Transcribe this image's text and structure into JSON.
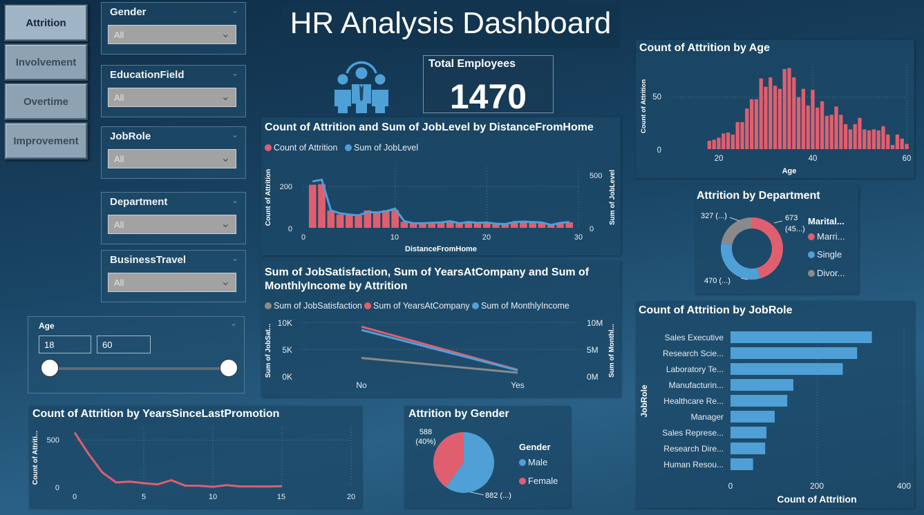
{
  "colors": {
    "red": "#e05f6f",
    "blue": "#4fa0d6",
    "gray": "#8a8a8a",
    "grid": "#5d7f99"
  },
  "nav": [
    {
      "label": "Attrition",
      "active": true
    },
    {
      "label": "Involvement"
    },
    {
      "label": "Overtime"
    },
    {
      "label": "Improvement"
    }
  ],
  "header": {
    "title": "HR Analysis Dashboard",
    "icon": "team-people-icon"
  },
  "kpi": {
    "label": "Total Employees",
    "value": "1470"
  },
  "slicers": [
    {
      "label": "Gender",
      "value": "All"
    },
    {
      "label": "EducationField",
      "value": "All"
    },
    {
      "label": "JobRole",
      "value": "All"
    },
    {
      "label": "Department",
      "value": "All"
    },
    {
      "label": "BusinessTravel",
      "value": "All"
    }
  ],
  "age_slider": {
    "label": "Age",
    "min": "18",
    "max": "60"
  },
  "chart_data": [
    {
      "id": "distance",
      "type": "bar+line",
      "title": "Count of Attrition and Sum of JobLevel by DistanceFromHome",
      "legend": [
        "Count of Attrition",
        "Sum of JobLevel"
      ],
      "xlabel": "DistanceFromHome",
      "ylabel": "Count of Attrition",
      "y2label": "Sum of JobLevel",
      "xticks": [
        "0",
        "10",
        "20",
        "30"
      ],
      "yticks": [
        "0",
        "200"
      ],
      "y2ticks": [
        "0",
        "500"
      ],
      "xlim": [
        0,
        30
      ],
      "ylim": [
        0,
        300
      ],
      "y2lim": [
        0,
        750
      ],
      "x": [
        1,
        2,
        3,
        4,
        5,
        6,
        7,
        8,
        9,
        10,
        11,
        12,
        13,
        14,
        15,
        16,
        17,
        18,
        19,
        20,
        21,
        22,
        23,
        24,
        25,
        26,
        27,
        28,
        29
      ],
      "attrition": [
        208,
        211,
        84,
        64,
        65,
        59,
        84,
        80,
        85,
        86,
        29,
        20,
        19,
        21,
        26,
        32,
        20,
        26,
        22,
        25,
        18,
        18,
        27,
        28,
        25,
        25,
        12,
        23,
        27
      ],
      "joblevel": [
        560,
        580,
        210,
        175,
        160,
        150,
        190,
        185,
        200,
        230,
        80,
        55,
        55,
        60,
        65,
        80,
        55,
        70,
        60,
        65,
        50,
        45,
        70,
        75,
        70,
        65,
        35,
        60,
        70
      ]
    },
    {
      "id": "satisfaction",
      "type": "line",
      "title": "Sum of JobSatisfaction, Sum of YearsAtCompany and Sum of MonthlyIncome by Attrition",
      "legend": [
        "Sum of JobSatisfaction",
        "Sum of YearsAtCompany",
        "Sum of MonthlyIncome"
      ],
      "categories": [
        "No",
        "Yes"
      ],
      "ylabel": "Sum of JobSat...",
      "y2label": "Sum of Monthl...",
      "yticks": [
        "0K",
        "5K",
        "10K"
      ],
      "y2ticks": [
        "0M",
        "5M",
        "10M"
      ],
      "ylim": [
        0,
        10000
      ],
      "y2lim": [
        0,
        10000000
      ],
      "series": [
        {
          "name": "Sum of JobSatisfaction",
          "values": [
            3400,
            650
          ],
          "axis": "left"
        },
        {
          "name": "Sum of YearsAtCompany",
          "values": [
            9200,
            1200
          ],
          "axis": "left"
        },
        {
          "name": "Sum of MonthlyIncome",
          "values": [
            8600000,
            1100000
          ],
          "axis": "right"
        }
      ]
    },
    {
      "id": "promotion",
      "type": "line",
      "title": "Count of Attrition by YearsSinceLastPromotion",
      "ylabel": "Count of Attriti...",
      "xticks": [
        "0",
        "5",
        "10",
        "15",
        "20"
      ],
      "yticks": [
        "0",
        "500"
      ],
      "xlim": [
        0,
        20
      ],
      "ylim": [
        0,
        600
      ],
      "x": [
        0,
        1,
        2,
        3,
        4,
        5,
        6,
        7,
        8,
        9,
        10,
        11,
        12,
        13,
        14,
        15
      ],
      "values": [
        580,
        357,
        159,
        52,
        61,
        45,
        32,
        76,
        18,
        17,
        6,
        24,
        10,
        10,
        9,
        13
      ]
    },
    {
      "id": "gender",
      "type": "pie",
      "title": "Attrition by Gender",
      "legend_title": "Gender",
      "slices": [
        {
          "name": "Male",
          "value": 882,
          "label": "882 (...)"
        },
        {
          "name": "Female",
          "value": 588,
          "label": "588 (40%)"
        }
      ]
    },
    {
      "id": "age",
      "type": "bar",
      "title": "Count of Attrition by Age",
      "xlabel": "Age",
      "ylabel": "Count of Attrition",
      "xticks": [
        "20",
        "40",
        "60"
      ],
      "yticks": [
        "0",
        "50"
      ],
      "xlim": [
        16,
        62
      ],
      "ylim": [
        0,
        85
      ],
      "x": [
        18,
        19,
        20,
        21,
        22,
        23,
        24,
        25,
        26,
        27,
        28,
        29,
        30,
        31,
        32,
        33,
        34,
        35,
        36,
        37,
        38,
        39,
        40,
        41,
        42,
        43,
        44,
        45,
        46,
        47,
        48,
        49,
        50,
        51,
        52,
        53,
        54,
        55,
        56,
        57,
        58,
        59,
        60
      ],
      "values": [
        8,
        9,
        11,
        15,
        16,
        14,
        26,
        26,
        39,
        48,
        48,
        68,
        60,
        69,
        61,
        58,
        77,
        78,
        69,
        50,
        58,
        42,
        57,
        40,
        46,
        32,
        33,
        41,
        33,
        24,
        19,
        24,
        30,
        19,
        18,
        19,
        18,
        22,
        14,
        4,
        14,
        10,
        5
      ]
    },
    {
      "id": "department",
      "type": "donut",
      "title": "Attrition by Department",
      "legend_title": "Marital...",
      "slices": [
        {
          "name": "Marri...",
          "value": 673,
          "label": "673 (45...)"
        },
        {
          "name": "Single",
          "value": 470,
          "label": "470 (...)"
        },
        {
          "name": "Divor...",
          "value": 327,
          "label": "327 (...)"
        }
      ]
    },
    {
      "id": "jobrole",
      "type": "hbar",
      "title": "Count of Attrition by JobRole",
      "xlabel": "Count of Attrition",
      "ylabel": "JobRole",
      "xticks": [
        "0",
        "200",
        "400"
      ],
      "xlim": [
        0,
        400
      ],
      "categories": [
        "Sales Executive",
        "Research Scie...",
        "Laboratory Te...",
        "Manufacturin...",
        "Healthcare Re...",
        "Manager",
        "Sales Represe...",
        "Research Dire...",
        "Human Resou..."
      ],
      "values": [
        326,
        292,
        259,
        145,
        131,
        102,
        83,
        80,
        52
      ]
    }
  ]
}
